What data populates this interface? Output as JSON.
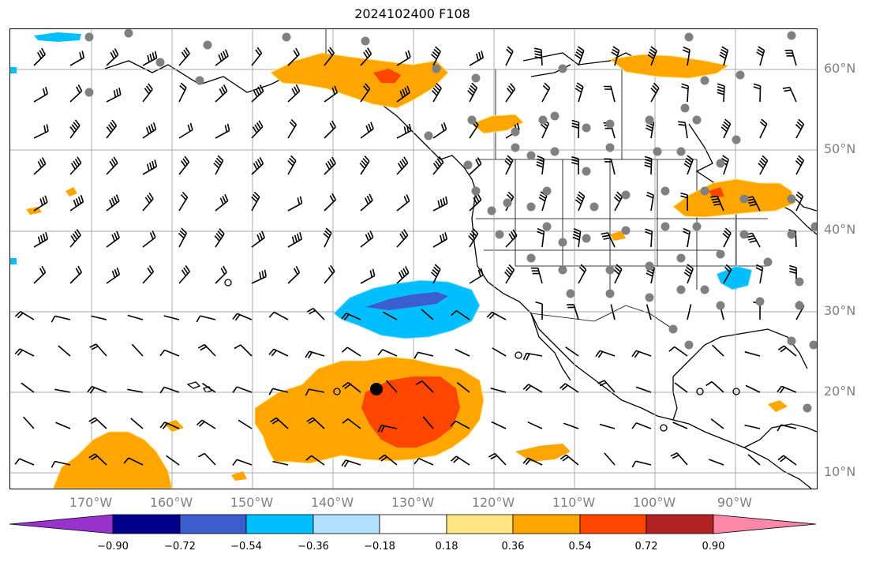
{
  "title": "2024102400 F108",
  "lat_labels": [
    "60°N",
    "50°N",
    "40°N",
    "30°N",
    "20°N",
    "10°N"
  ],
  "lon_labels": [
    "170°W",
    "160°W",
    "150°W",
    "140°W",
    "130°W",
    "120°W",
    "110°W",
    "100°W",
    "90°W"
  ],
  "colorbar": {
    "labels": [
      "−0.90",
      "−0.72",
      "−0.54",
      "−0.36",
      "−0.18",
      "0.18",
      "0.36",
      "0.54",
      "0.72",
      "0.90"
    ],
    "colors": [
      "#9932cc",
      "#00008b",
      "#3a5fcd",
      "#00bfff",
      "#b0e2ff",
      "#ffffff",
      "#ffe680",
      "#ffa500",
      "#ff4500",
      "#b22222",
      "#ff88aa"
    ]
  },
  "map": {
    "type": "filled contour map with wind barbs and station markers",
    "grid": true,
    "longitude_range": [
      -180,
      -80
    ],
    "latitude_range": [
      8,
      65
    ],
    "marked_location": {
      "lon": -135,
      "lat": 20
    }
  }
}
